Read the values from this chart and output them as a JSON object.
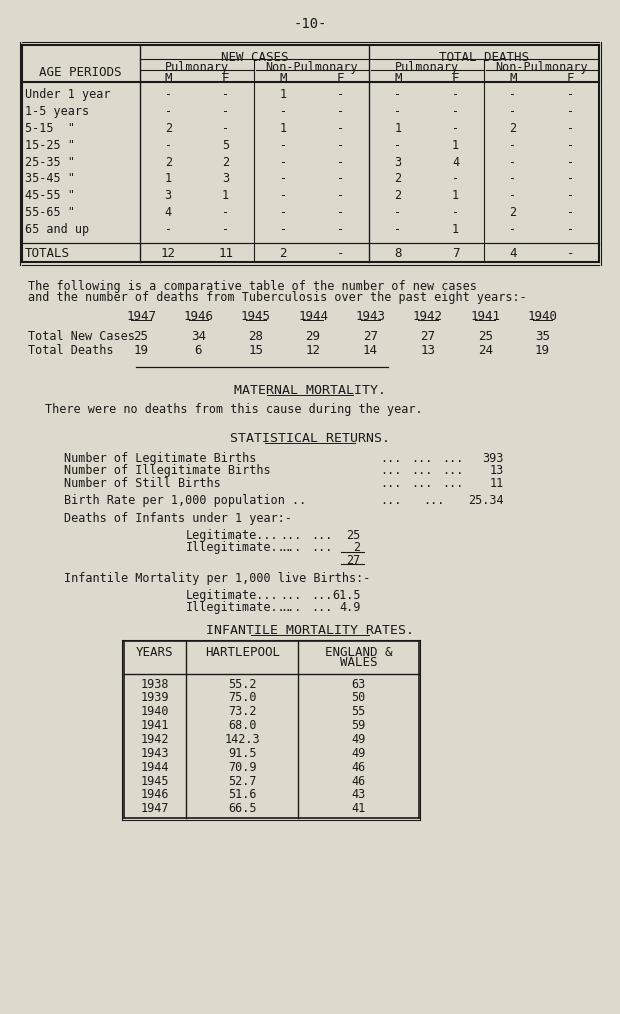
{
  "bg_color": "#ddd9cc",
  "text_color": "#1a1a1a",
  "page_number": "-10-",
  "table1": {
    "rows": [
      [
        "Under 1 year",
        "-",
        "-",
        "1",
        "-",
        "-",
        "-",
        "-",
        "-"
      ],
      [
        "1-5 years",
        "-",
        "-",
        "-",
        "-",
        "-",
        "-",
        "-",
        "-"
      ],
      [
        "5-15  \"",
        "2",
        "-",
        "1",
        "-",
        "1",
        "-",
        "2",
        "-"
      ],
      [
        "15-25 \"",
        "-",
        "5",
        "-",
        "-",
        "-",
        "1",
        "-",
        "-"
      ],
      [
        "25-35 \"",
        "2",
        "2",
        "-",
        "-",
        "3",
        "4",
        "-",
        "-"
      ],
      [
        "35-45 \"",
        "1",
        "3",
        "-",
        "-",
        "2",
        "-",
        "-",
        "-"
      ],
      [
        "45-55 \"",
        "3",
        "1",
        "-",
        "-",
        "2",
        "1",
        "-",
        "-"
      ],
      [
        "55-65 \"",
        "4",
        "-",
        "-",
        "-",
        "-",
        "-",
        "2",
        "-"
      ],
      [
        "65 and up",
        "-",
        "-",
        "-",
        "-",
        "-",
        "1",
        "-",
        "-"
      ]
    ],
    "totals_row": [
      "TOTALS",
      "12",
      "11",
      "2",
      "-",
      "8",
      "7",
      "4",
      "-"
    ]
  },
  "para1": "The following is a comparative table of the number of new cases",
  "para2": "and the number of deaths from Tuberculosis over the past eight years:-",
  "years": [
    "1947",
    "1946",
    "1945",
    "1944",
    "1943",
    "1942",
    "1941",
    "1940"
  ],
  "total_new_cases": [
    25,
    34,
    28,
    29,
    27,
    27,
    25,
    35
  ],
  "total_deaths": [
    19,
    6,
    15,
    12,
    14,
    13,
    24,
    19
  ],
  "maternal_title": "MATERNAL MORTALITY.",
  "maternal_text": "There were no deaths from this cause during the year.",
  "statistical_title": "STATISTICAL RETURNS.",
  "stat_rows": [
    [
      "Number of Legitimate Births",
      "...",
      "...",
      "...",
      "393"
    ],
    [
      "Number of Illegitimate Births",
      "...",
      "...",
      "...",
      "13"
    ],
    [
      "Number of Still Births",
      "...",
      "...",
      "...",
      "11"
    ]
  ],
  "birth_rate_text": "Birth Rate per 1,000 population ..",
  "birth_rate_dots1": "...",
  "birth_rate_dots2": "...",
  "birth_rate_value": "25.34",
  "deaths_infants_text": "Deaths of Infants under 1 year:-",
  "legitimate_label": "Legitimate...",
  "legitimate_dots1": "...",
  "legitimate_dots2": "...",
  "legitimate_value": "25",
  "illegitimate_label": "Illegitimate...",
  "illegitimate_dots1": "...",
  "illegitimate_dots2": "...",
  "illegitimate_value": "2",
  "total_value": "27",
  "infantile_title": "Infantile Mortality per 1,000 live Births:-",
  "leg_mortality_label": "Legitimate...",
  "leg_mortality_dots1": "...",
  "leg_mortality_dots2": "...",
  "leg_mortality_value": "61.5",
  "illeg_mortality_label": "Illegitimate...",
  "illeg_mortality_dots1": "...",
  "illeg_mortality_dots2": "...",
  "illeg_mortality_value": "4.9",
  "imr_title": "INFANTILE MORTALITY RATES.",
  "imr_col1": "YEARS",
  "imr_col2": "HARTLEPOOL",
  "imr_col3_line1": "ENGLAND &",
  "imr_col3_line2": "WALES",
  "imr_rows": [
    [
      "1938",
      "55.2",
      "63"
    ],
    [
      "1939",
      "75.0",
      "50"
    ],
    [
      "1940",
      "73.2",
      "55"
    ],
    [
      "1941",
      "68.0",
      "59"
    ],
    [
      "1942",
      "142.3",
      "49"
    ],
    [
      "1943",
      "91.5",
      "49"
    ],
    [
      "1944",
      "70.9",
      "46"
    ],
    [
      "1945",
      "52.7",
      "46"
    ],
    [
      "1946",
      "51.6",
      "43"
    ],
    [
      "1947",
      "66.5",
      "41"
    ]
  ]
}
